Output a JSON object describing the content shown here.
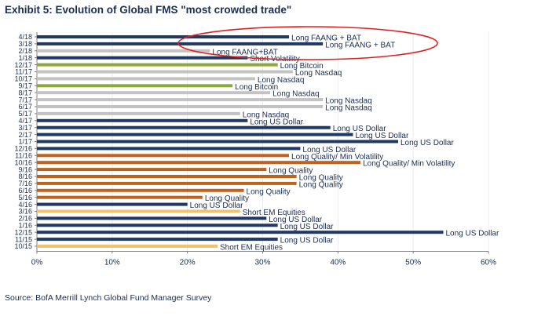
{
  "chart_data": {
    "type": "bar",
    "orientation": "horizontal",
    "title": "Exhibit 5: Evolution of Global FMS \"most crowded trade\"",
    "source": "Source: BofA Merrill Lynch Global Fund Manager Survey",
    "xlim": [
      0,
      60
    ],
    "x_ticks": [
      "0%",
      "10%",
      "20%",
      "30%",
      "40%",
      "50%",
      "60%"
    ],
    "annotation": "red ellipse around the 4/18 and 3/18 bars",
    "colors": {
      "navy": "#1f3864",
      "green": "#8aaa3c",
      "gray": "#c3c3c3",
      "orange": "#c0621d",
      "gold": "#f0c36c",
      "ellipse": "#e02020"
    },
    "bars": [
      {
        "date": "4/18",
        "value": 33.5,
        "label": "Long FAANG + BAT",
        "color": "navy"
      },
      {
        "date": "3/18",
        "value": 38,
        "label": "Long FAANG + BAT",
        "color": "navy"
      },
      {
        "date": "2/18",
        "value": 23,
        "label": "Long FAANG+BAT",
        "color": "gray"
      },
      {
        "date": "1/18",
        "value": 28,
        "label": "Short Volatility",
        "color": "navy"
      },
      {
        "date": "12/17",
        "value": 32,
        "label": "Long Bitcoin",
        "color": "green"
      },
      {
        "date": "11/17",
        "value": 34,
        "label": "Long Nasdaq",
        "color": "gray"
      },
      {
        "date": "10/17",
        "value": 29,
        "label": "Long Nasdaq",
        "color": "gray"
      },
      {
        "date": "9/17",
        "value": 26,
        "label": "Long Bitcoin",
        "color": "green"
      },
      {
        "date": "8/17",
        "value": 31,
        "label": "Long Nasdaq",
        "color": "gray"
      },
      {
        "date": "7/17",
        "value": 38,
        "label": "Long Nasdaq",
        "color": "gray"
      },
      {
        "date": "6/17",
        "value": 38,
        "label": "Long Nasdaq",
        "color": "gray"
      },
      {
        "date": "5/17",
        "value": 27,
        "label": "Long Nasdaq",
        "color": "gray"
      },
      {
        "date": "4/17",
        "value": 28,
        "label": "Long US Dollar",
        "color": "navy"
      },
      {
        "date": "3/17",
        "value": 39,
        "label": "Long US Dollar",
        "color": "navy"
      },
      {
        "date": "2/17",
        "value": 42,
        "label": "Long US Dollar",
        "color": "navy"
      },
      {
        "date": "1/17",
        "value": 48,
        "label": "Long US Dollar",
        "color": "navy"
      },
      {
        "date": "12/16",
        "value": 35,
        "label": "Long US Dollar",
        "color": "navy"
      },
      {
        "date": "11/16",
        "value": 33.5,
        "label": "Long Quality/ Min Volatility",
        "color": "orange"
      },
      {
        "date": "10/16",
        "value": 43,
        "label": "Long Quality/ Min Volatility",
        "color": "orange"
      },
      {
        "date": "9/16",
        "value": 30.5,
        "label": "Long Quality",
        "color": "orange"
      },
      {
        "date": "8/16",
        "value": 34.5,
        "label": "Long Quality",
        "color": "orange"
      },
      {
        "date": "7/16",
        "value": 34.5,
        "label": "Long Quality",
        "color": "orange"
      },
      {
        "date": "6/16",
        "value": 27.5,
        "label": "Long Quality",
        "color": "orange"
      },
      {
        "date": "5/16",
        "value": 22,
        "label": "Long Quality",
        "color": "orange"
      },
      {
        "date": "4/16",
        "value": 20,
        "label": "Long US Dollar",
        "color": "navy"
      },
      {
        "date": "3/16",
        "value": 27,
        "label": "Short EM Equities",
        "color": "gold"
      },
      {
        "date": "2/16",
        "value": 30.5,
        "label": "Long US Dollar",
        "color": "navy"
      },
      {
        "date": "1/16",
        "value": 32,
        "label": "Long US Dollar",
        "color": "navy"
      },
      {
        "date": "12/15",
        "value": 54,
        "label": "Long US Dollar",
        "color": "navy"
      },
      {
        "date": "11/15",
        "value": 32,
        "label": "Long US Dollar",
        "color": "navy"
      },
      {
        "date": "10/15",
        "value": 24,
        "label": "Short EM Equities",
        "color": "gold"
      }
    ]
  }
}
